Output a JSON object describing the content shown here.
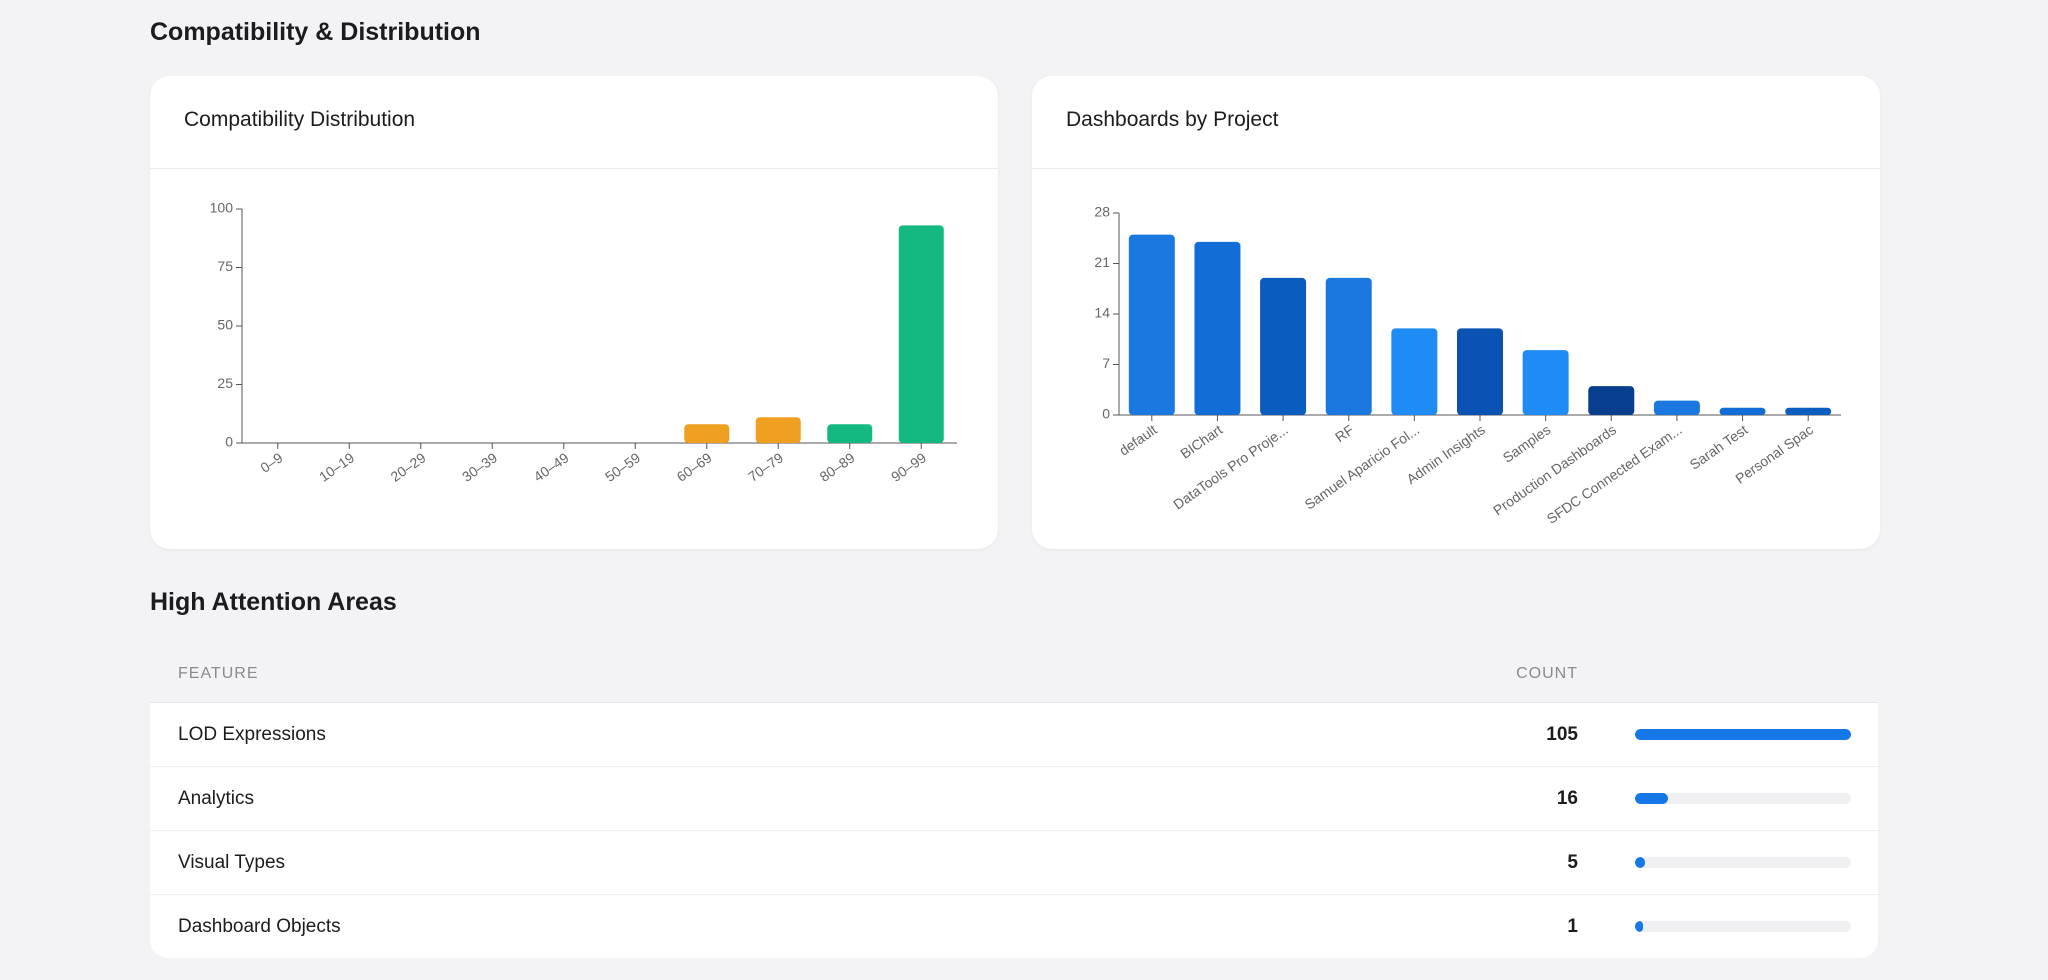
{
  "header": {
    "title": "Compatibility & Distribution"
  },
  "charts": [
    {
      "chart_data": {
        "type": "bar",
        "title": "Compatibility Distribution",
        "categories": [
          "0–9",
          "10–19",
          "20–29",
          "30–39",
          "40–49",
          "50–59",
          "60–69",
          "70–79",
          "80–89",
          "90–99"
        ],
        "values": [
          0,
          0,
          0,
          0,
          0,
          0,
          8,
          11,
          8,
          93
        ],
        "colors": [
          "#f0a020",
          "#f0a020",
          "#f0a020",
          "#f0a020",
          "#f0a020",
          "#f0a020",
          "#f0a020",
          "#f0a020",
          "#14b981",
          "#14b981"
        ],
        "ylim": [
          0,
          100
        ],
        "yticks": [
          0,
          25,
          50,
          75,
          100
        ]
      }
    },
    {
      "chart_data": {
        "type": "bar",
        "title": "Dashboards by Project",
        "categories": [
          "default",
          "BIChart",
          "DataTools Pro Proje...",
          "RF",
          "Samuel Aparicio Fol...",
          "Admin Insights",
          "Samples",
          "Production Dashboards",
          "SFDC Connected Exam...",
          "Sarah Test",
          "Personal Spac"
        ],
        "values": [
          25,
          24,
          19,
          19,
          12,
          12,
          9,
          4,
          2,
          1,
          1
        ],
        "colors": [
          "#1a78e0",
          "#126ed6",
          "#0a5cbf",
          "#1a78e0",
          "#1f8cf5",
          "#0a52b4",
          "#1f8cf5",
          "#083e8e",
          "#1a78e0",
          "#126ed6",
          "#0a5cbf"
        ],
        "ylim": [
          0,
          28
        ],
        "yticks": [
          0,
          7,
          14,
          21,
          28
        ]
      }
    }
  ],
  "section2": {
    "title": "High Attention Areas"
  },
  "table": {
    "columns": [
      "FEATURE",
      "COUNT"
    ],
    "rows": [
      [
        "LOD Expressions",
        105
      ],
      [
        "Analytics",
        16
      ],
      [
        "Visual Types",
        5
      ],
      [
        "Dashboard Objects",
        1
      ]
    ],
    "bar_color": "#1677e8"
  }
}
